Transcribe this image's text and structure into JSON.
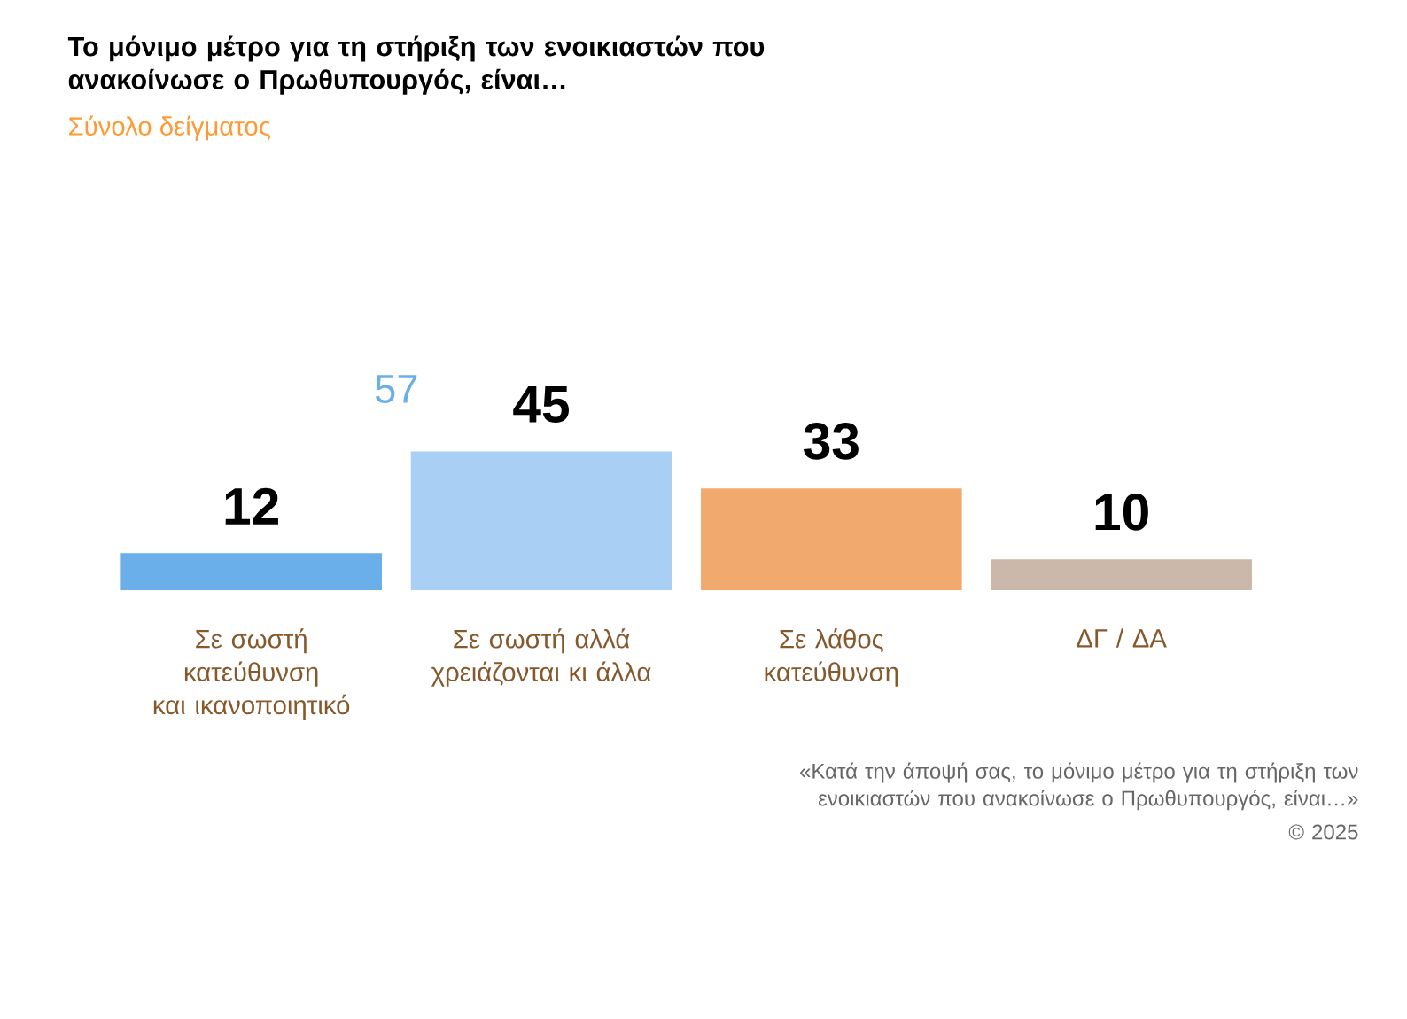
{
  "chart_data": {
    "type": "bar",
    "title": "Το μόνιμο μέτρο για τη στήριξη των ενοικιαστών που ανακοίνωσε ο Πρωθυπουργός, είναι…",
    "subtitle": "Σύνολο δείγματος",
    "categories": [
      "Σε σωστή κατεύθυνση και ικανοποιητικό",
      "Σε σωστή αλλά χρειάζονται κι άλλα",
      "Σε λάθος κατεύθυνση",
      "ΔΓ / ΔΑ"
    ],
    "values": [
      12,
      45,
      33,
      10
    ],
    "colors": [
      "#6aaeea",
      "#a9d0f4",
      "#f2a96e",
      "#cbb8aa"
    ],
    "data_labels": true,
    "annotations": [
      "57",
      "«Κατά την άποψή σας, το μόνιμο μέτρο για τη στήριξη των ενοικιαστών που ανακοίνωσε ο Πρωθυπουργός, είναι…»",
      "© 2025"
    ]
  }
}
